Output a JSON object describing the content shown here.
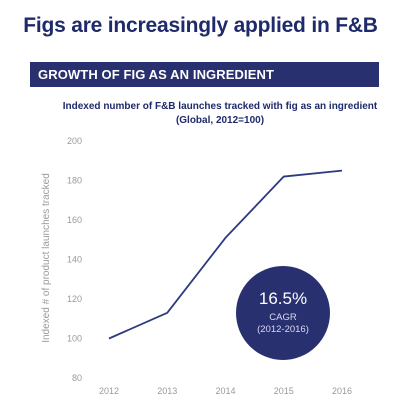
{
  "page": {
    "title": "Figs are increasingly applied in F&B",
    "section_banner": "GROWTH OF FIG AS AN INGREDIENT"
  },
  "chart_data": {
    "type": "line",
    "title": "Indexed number of F&B launches tracked with fig as an ingredient (Global, 2012=100)",
    "xlabel": "",
    "ylabel": "Indexed # of product launches tracked",
    "categories": [
      "2012",
      "2013",
      "2014",
      "2015",
      "2016"
    ],
    "series": [
      {
        "values": [
          100,
          113,
          151,
          182,
          185
        ]
      }
    ],
    "ylim": [
      80,
      200
    ],
    "yticks": [
      80,
      100,
      120,
      140,
      160,
      180,
      200
    ],
    "grid": false,
    "line_color": "#2e3a80",
    "annotation": {
      "value": "16.5%",
      "label": "CAGR",
      "period": "(2012-2016)",
      "color": "#29306f"
    }
  }
}
